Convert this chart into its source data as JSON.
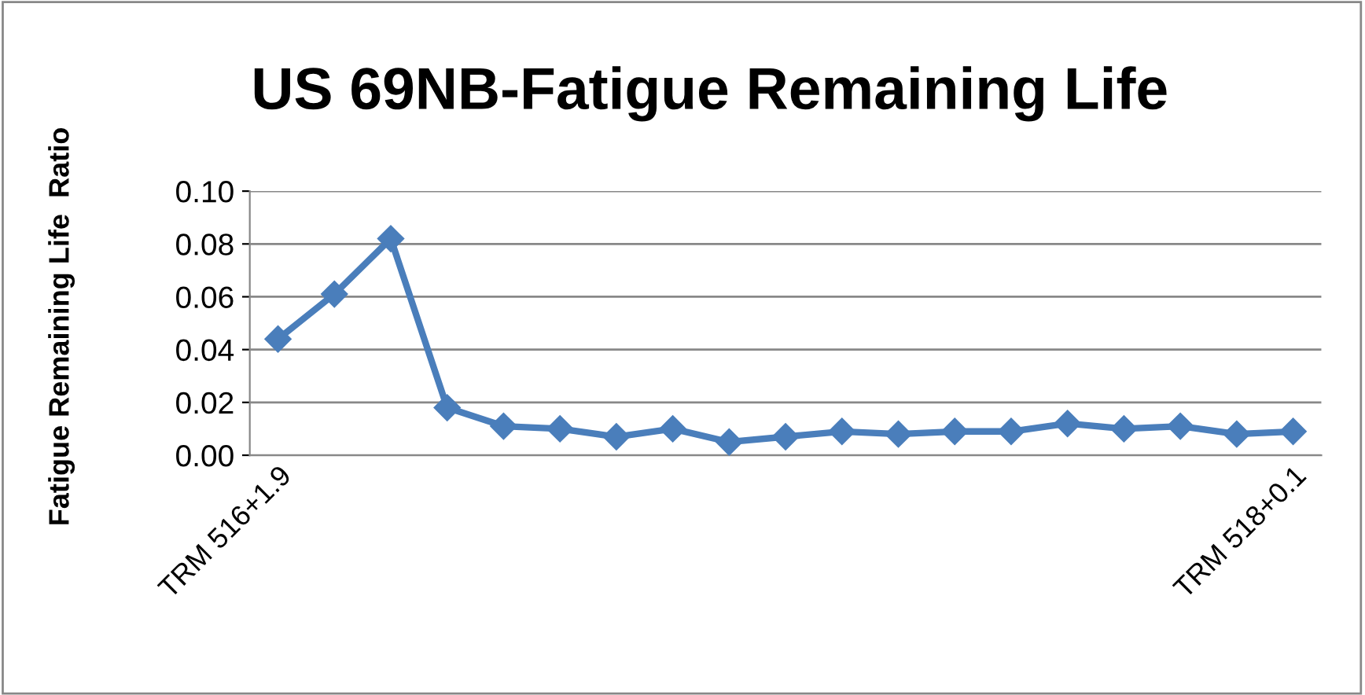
{
  "chart_data": {
    "type": "line",
    "title": "US 69NB-Fatigue Remaining Life",
    "ylabel": "Fatigue Remaining Life  Ratio",
    "categories": [
      "TRM 516+1.9",
      null,
      null,
      null,
      null,
      null,
      null,
      null,
      null,
      null,
      null,
      null,
      null,
      null,
      null,
      null,
      null,
      null,
      "TRM 518+0.1"
    ],
    "series": [
      {
        "color": "#4a7ebb",
        "values": [
          0.044,
          0.061,
          0.082,
          0.018,
          0.011,
          0.01,
          0.007,
          0.01,
          0.005,
          0.007,
          0.009,
          0.008,
          0.009,
          0.009,
          0.012,
          0.01,
          0.011,
          0.008,
          0.009
        ]
      }
    ],
    "ylim": [
      0,
      0.1
    ],
    "yticks": [
      {
        "value": 0,
        "label": "0.00"
      },
      {
        "value": 0.02,
        "label": "0.02"
      },
      {
        "value": 0.04,
        "label": "0.04"
      },
      {
        "value": 0.06,
        "label": "0.06"
      },
      {
        "value": 0.08,
        "label": "0.08"
      },
      {
        "value": 0.1,
        "label": "0.10"
      }
    ],
    "grid": "y",
    "legend": false,
    "marker": "diamond",
    "line_style": "solid"
  }
}
